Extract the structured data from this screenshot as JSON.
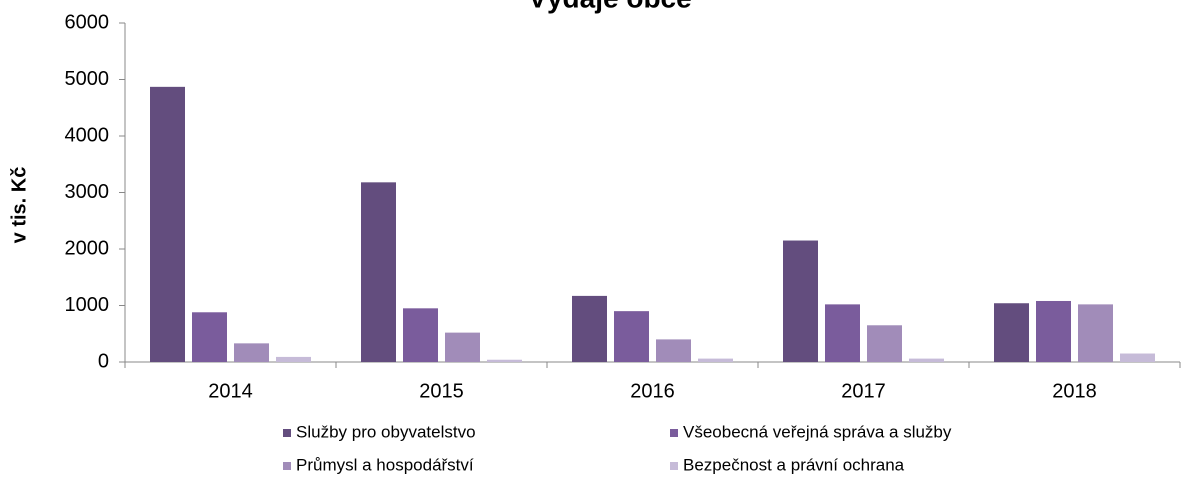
{
  "chart_data": {
    "type": "bar",
    "title": "Výdaje obce",
    "ylabel": "v tis. Kč",
    "categories": [
      "2014",
      "2015",
      "2016",
      "2017",
      "2018"
    ],
    "series": [
      {
        "name": "Služby pro obyvatelstvo",
        "color": "#634d7e",
        "values": [
          4870,
          3180,
          1170,
          2150,
          1040
        ]
      },
      {
        "name": "Všeobecná veřejná správa a služby",
        "color": "#7a5c9c",
        "values": [
          880,
          950,
          900,
          1020,
          1080
        ]
      },
      {
        "name": "Průmysl a hospodářství",
        "color": "#a18cb9",
        "values": [
          330,
          520,
          400,
          650,
          1020
        ]
      },
      {
        "name": "Bezpečnost a právní ochrana",
        "color": "#c6bbd8",
        "values": [
          90,
          40,
          60,
          60,
          150
        ]
      }
    ],
    "ylim": [
      0,
      6000
    ],
    "yticks": [
      0,
      1000,
      2000,
      3000,
      4000,
      5000,
      6000
    ],
    "grid": false
  }
}
